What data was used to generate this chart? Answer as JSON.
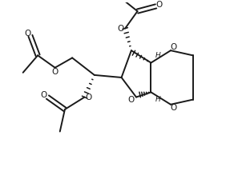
{
  "bg_color": "#ffffff",
  "line_color": "#1a1a1a",
  "line_width": 1.4,
  "figsize": [
    2.97,
    2.19
  ],
  "dpi": 100,
  "xlim": [
    0,
    9.5
  ],
  "ylim": [
    0,
    7.0
  ]
}
